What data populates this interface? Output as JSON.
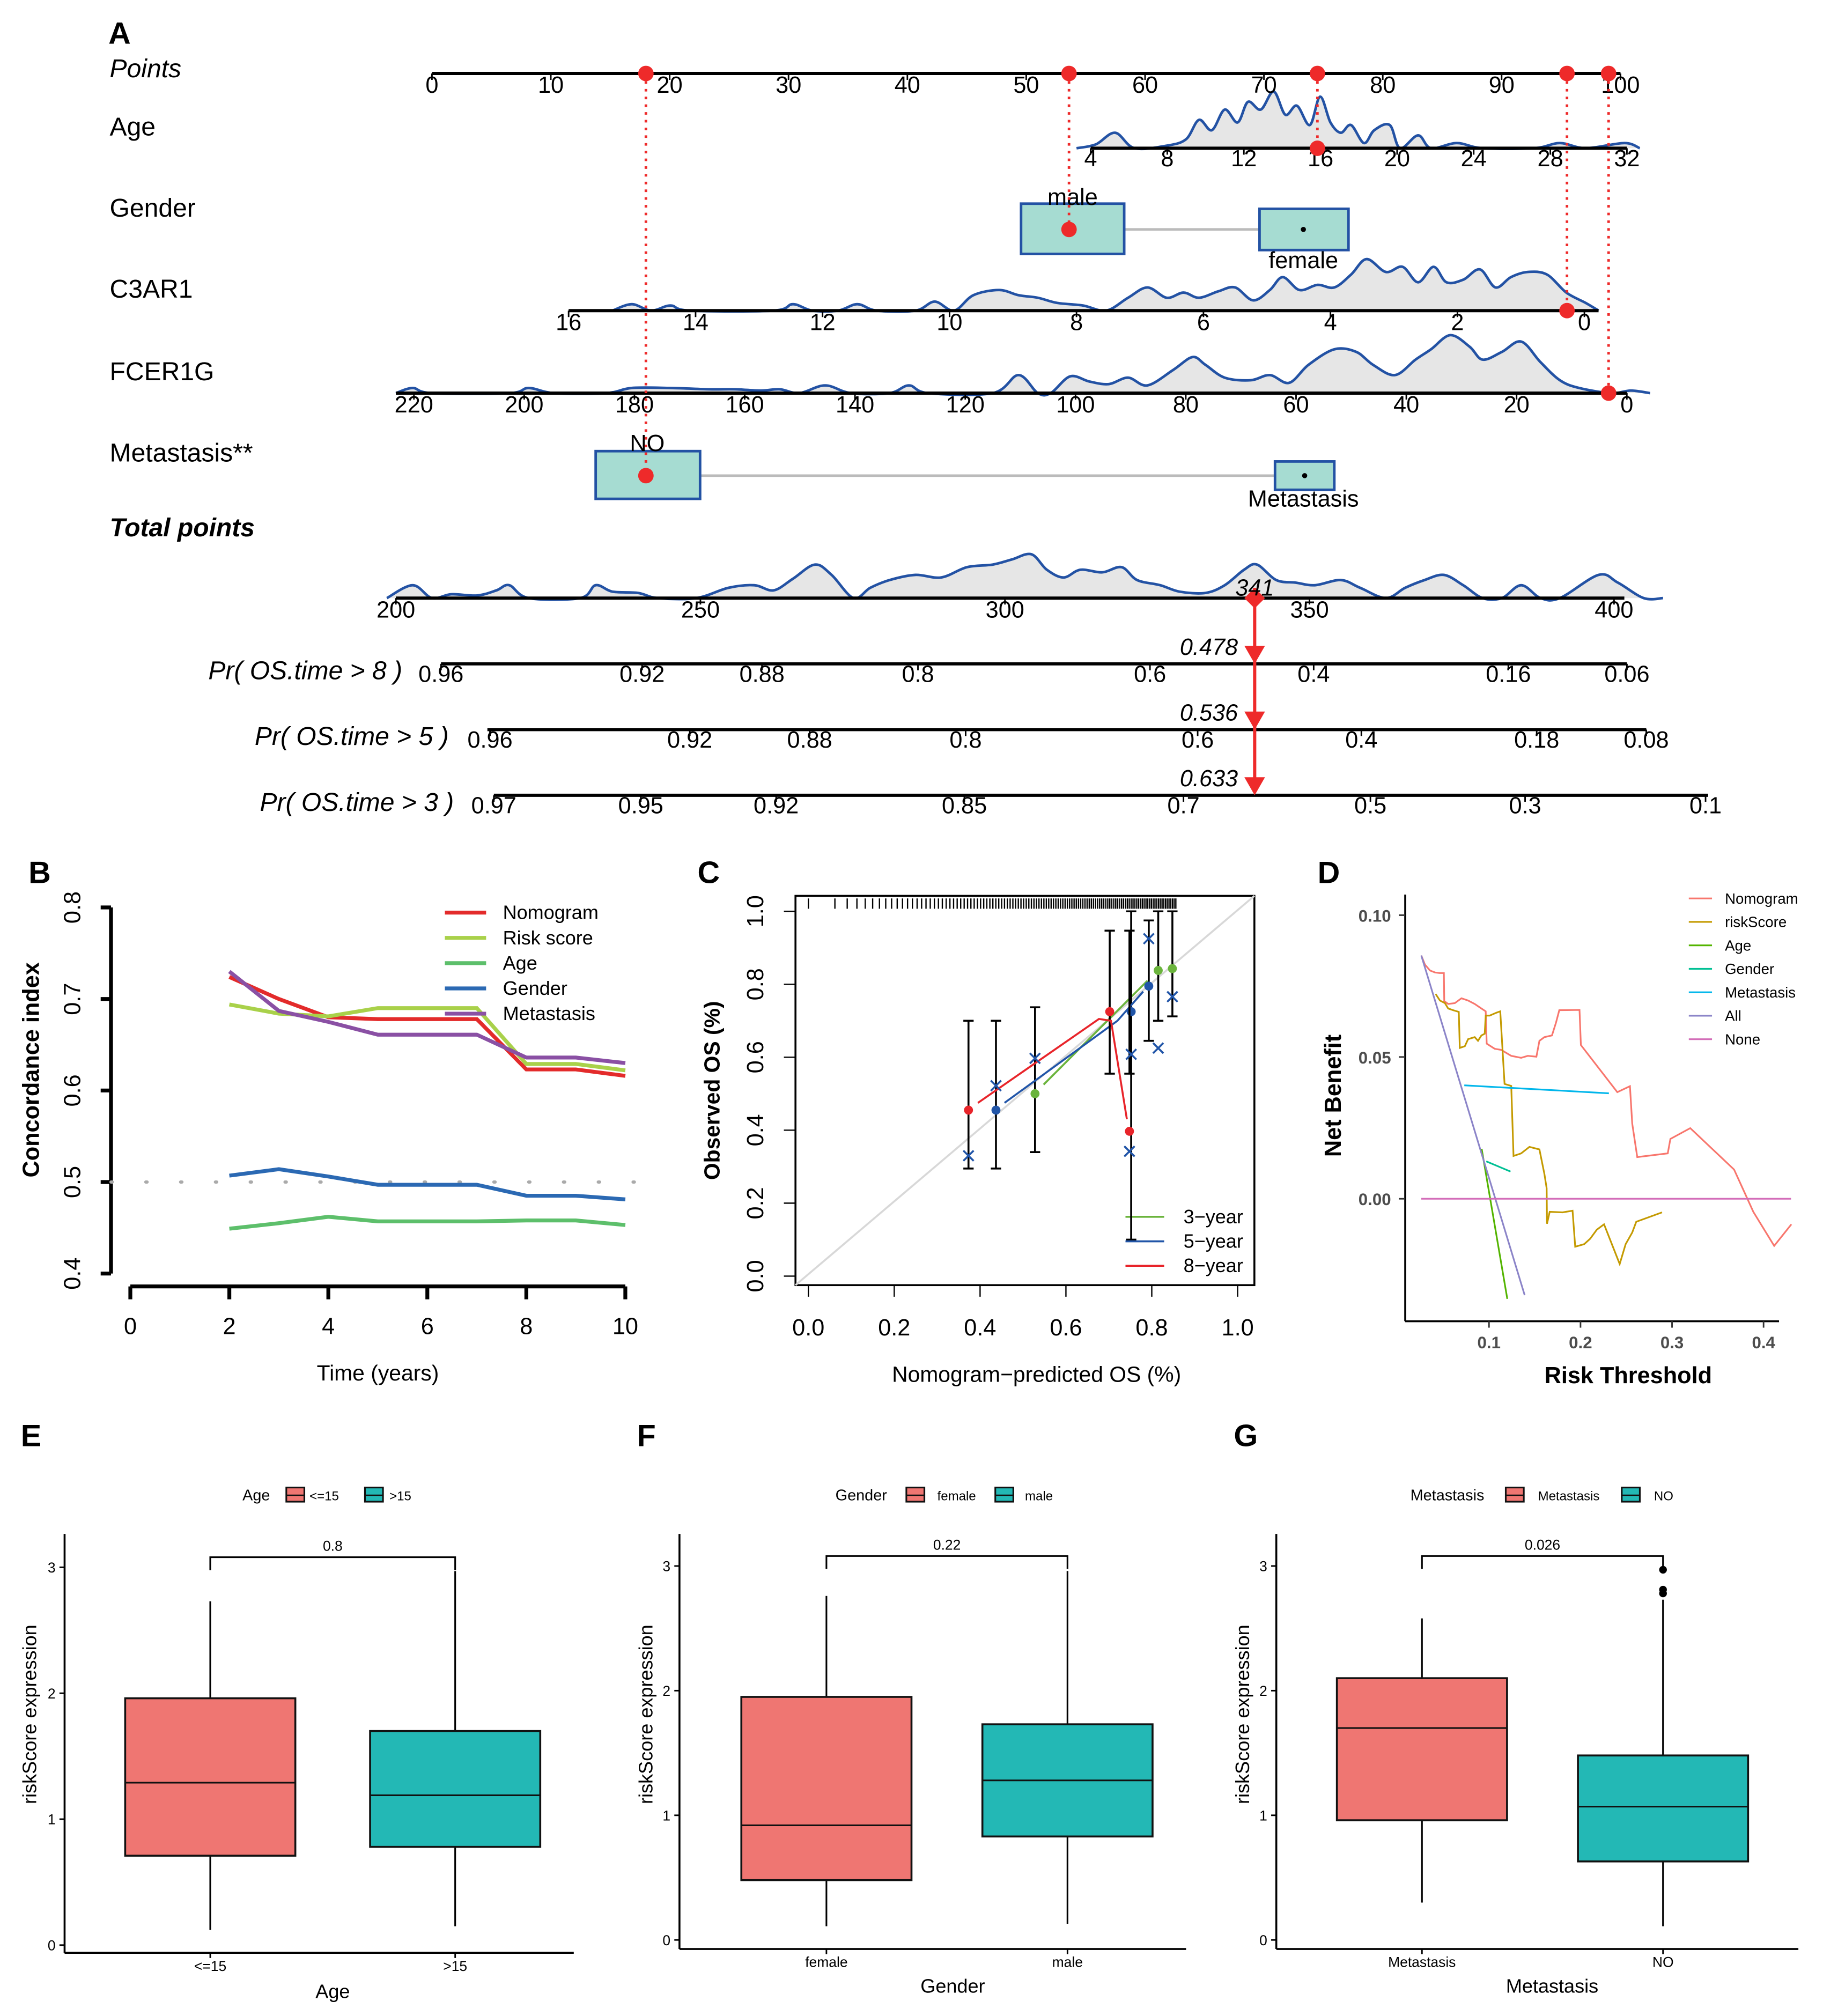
{
  "panels": {
    "a": "A",
    "b": "B",
    "c": "C",
    "d": "D",
    "e": "E",
    "f": "F",
    "g": "G"
  },
  "colors": {
    "nomogram_curve": "#2352a4",
    "nomogram_fill": "#e6e6e6",
    "nomogram_box": "#a6dcd2",
    "selection_red": "#ee2a2a"
  },
  "chart_data": [
    {
      "type": "nomogram",
      "rows": [
        {
          "label": "Points",
          "style": "italic",
          "ticks": [
            "0",
            "10",
            "20",
            "30",
            "40",
            "50",
            "60",
            "70",
            "80",
            "90",
            "100"
          ]
        },
        {
          "label": "Age",
          "ticks": [
            "4",
            "8",
            "12",
            "16",
            "20",
            "24",
            "28",
            "32"
          ]
        },
        {
          "label": "Gender",
          "levels": [
            "male",
            "female"
          ]
        },
        {
          "label": "C3AR1",
          "ticks": [
            "16",
            "14",
            "12",
            "10",
            "8",
            "6",
            "4",
            "2",
            "0"
          ]
        },
        {
          "label": "FCER1G",
          "ticks": [
            "220",
            "200",
            "180",
            "160",
            "140",
            "120",
            "100",
            "80",
            "60",
            "40",
            "20",
            "0"
          ]
        },
        {
          "label": "Metastasis**",
          "levels": [
            "NO",
            "Metastasis"
          ]
        },
        {
          "label": "Total points",
          "style": "bold-italic",
          "ticks": [
            "200",
            "250",
            "300",
            "350",
            "400"
          ]
        },
        {
          "label": "Pr( OS.time > 8 )",
          "style": "italic",
          "ticks": [
            "0.96",
            "0.92",
            "0.88",
            "0.8",
            "0.6",
            "0.4",
            "0.16",
            "0.06"
          ]
        },
        {
          "label": "Pr( OS.time > 5 )",
          "style": "italic",
          "ticks": [
            "0.96",
            "0.92",
            "0.88",
            "0.8",
            "0.6",
            "0.4",
            "0.18",
            "0.08"
          ]
        },
        {
          "label": "Pr( OS.time > 3 )",
          "style": "italic",
          "ticks": [
            "0.97",
            "0.95",
            "0.92",
            "0.85",
            "0.7",
            "0.5",
            "0.3",
            "0.1"
          ]
        }
      ],
      "selected_points": [
        18,
        53.6,
        74.5,
        95.5,
        99
      ],
      "selected_values": {
        "Metastasis": "NO",
        "Gender": "male",
        "Age": 16,
        "C3AR1": 0.2,
        "FCER1G": 2
      },
      "total_points": 341,
      "total_label": "341",
      "predictions": [
        "0.478",
        "0.536",
        "0.633"
      ]
    },
    {
      "type": "line",
      "xlabel": "Time (years)",
      "ylabel": "Concordance index",
      "xlim": [
        0,
        10
      ],
      "ylim": [
        0.4,
        0.8
      ],
      "xticks": [
        "0",
        "2",
        "4",
        "6",
        "8",
        "10"
      ],
      "yticks": [
        "0.4",
        "0.5",
        "0.6",
        "0.7",
        "0.8"
      ],
      "reference_line": 0.5,
      "legend_position": "top-right",
      "x": [
        2,
        3,
        4,
        5,
        6,
        7,
        8,
        9,
        10
      ],
      "series": [
        {
          "name": "Nomogram",
          "color": "#e32b2b",
          "values": [
            0.724,
            0.7,
            0.68,
            0.678,
            0.678,
            0.678,
            0.623,
            0.623,
            0.616
          ]
        },
        {
          "name": "Risk score",
          "color": "#a9d14a",
          "values": [
            0.694,
            0.684,
            0.681,
            0.69,
            0.69,
            0.69,
            0.629,
            0.629,
            0.622
          ]
        },
        {
          "name": "Age",
          "color": "#5dbf6b",
          "values": [
            0.449,
            0.455,
            0.462,
            0.457,
            0.457,
            0.457,
            0.458,
            0.458,
            0.453
          ]
        },
        {
          "name": "Gender",
          "color": "#2b69b3",
          "values": [
            0.507,
            0.514,
            0.506,
            0.497,
            0.497,
            0.497,
            0.485,
            0.485,
            0.481
          ]
        },
        {
          "name": "Metastasis",
          "color": "#8a50a4",
          "values": [
            0.73,
            0.687,
            0.675,
            0.661,
            0.661,
            0.661,
            0.636,
            0.636,
            0.63
          ]
        }
      ]
    },
    {
      "type": "scatter",
      "xlabel": "Nomogram−predicted OS (%)",
      "ylabel": "Observed OS (%)",
      "xlim": [
        0,
        1
      ],
      "ylim": [
        0,
        1
      ],
      "xticks": [
        "0.0",
        "0.2",
        "0.4",
        "0.6",
        "0.8",
        "1.0"
      ],
      "yticks": [
        "0.0",
        "0.2",
        "0.4",
        "0.6",
        "0.8",
        "1.0"
      ],
      "legend_position": "bottom-right",
      "series": [
        {
          "name": "3−year",
          "color": "#6bb43d",
          "points": [
            [
              0.528,
              0.5
            ],
            [
              0.815,
              0.838
            ],
            [
              0.848,
              0.843
            ]
          ],
          "errors": [
            [
              0.34,
              0.737
            ],
            [
              0.7,
              1.0
            ],
            [
              0.712,
              1.0
            ]
          ],
          "fit": [
            [
              0.548,
              0.525
            ],
            [
              0.79,
              0.81
            ]
          ]
        },
        {
          "name": "5−year",
          "color": "#2155a8",
          "points": [
            [
              0.437,
              0.455
            ],
            [
              0.752,
              0.725
            ],
            [
              0.793,
              0.795
            ]
          ],
          "errors": [
            [
              0.295,
              0.7
            ],
            [
              0.1,
              1.0
            ],
            [
              0.645,
              0.975
            ]
          ],
          "fit": [
            [
              0.457,
              0.475
            ],
            [
              0.72,
              0.7
            ],
            [
              0.78,
              0.78
            ]
          ]
        },
        {
          "name": "8−year",
          "color": "#e8242a",
          "points": [
            [
              0.373,
              0.455
            ],
            [
              0.702,
              0.725
            ],
            [
              0.748,
              0.397
            ]
          ],
          "errors": [
            [
              0.295,
              0.7
            ],
            [
              0.555,
              0.947
            ],
            [
              0.555,
              0.947
            ]
          ],
          "fit": [
            [
              0.395,
              0.475
            ],
            [
              0.677,
              0.705
            ],
            [
              0.705,
              0.7
            ],
            [
              0.742,
              0.43
            ]
          ]
        }
      ],
      "bias_corrected_x": [
        [
          0.373,
          0.33
        ],
        [
          0.437,
          0.522
        ],
        [
          0.528,
          0.597
        ],
        [
          0.748,
          0.342
        ],
        [
          0.752,
          0.608
        ],
        [
          0.793,
          0.925
        ],
        [
          0.815,
          0.625
        ],
        [
          0.848,
          0.766
        ]
      ]
    },
    {
      "type": "line",
      "xlabel": "Risk Threshold",
      "ylabel": "Net Benefit",
      "xticks": [
        "0.1",
        "0.2",
        "0.3",
        "0.4"
      ],
      "yticks": [
        "0.00",
        "0.05",
        "0.10"
      ],
      "legend_position": "top-right",
      "series": [
        {
          "name": "Nomogram",
          "color": "#f8766d",
          "points": [
            [
              0.026,
              0.0858
            ],
            [
              0.03,
              0.0826
            ],
            [
              0.0355,
              0.0805
            ],
            [
              0.041,
              0.0798
            ],
            [
              0.046,
              0.0796
            ],
            [
              0.0507,
              0.0796
            ],
            [
              0.0511,
              0.0697
            ],
            [
              0.0554,
              0.0687
            ],
            [
              0.0627,
              0.069
            ],
            [
              0.0699,
              0.0707
            ],
            [
              0.0772,
              0.0699
            ],
            [
              0.0844,
              0.0687
            ],
            [
              0.0917,
              0.0671
            ],
            [
              0.0964,
              0.0661
            ],
            [
              0.0975,
              0.0547
            ],
            [
              0.1062,
              0.0529
            ],
            [
              0.1134,
              0.0525
            ],
            [
              0.1243,
              0.0504
            ],
            [
              0.1351,
              0.0497
            ],
            [
              0.1424,
              0.0504
            ],
            [
              0.1518,
              0.0501
            ],
            [
              0.1551,
              0.0557
            ],
            [
              0.1605,
              0.057
            ],
            [
              0.1688,
              0.0576
            ],
            [
              0.1732,
              0.0621
            ],
            [
              0.1768,
              0.0665
            ],
            [
              0.1989,
              0.0666
            ],
            [
              0.2004,
              0.0542
            ],
            [
              0.2402,
              0.0376
            ],
            [
              0.254,
              0.0397
            ],
            [
              0.2565,
              0.0265
            ],
            [
              0.262,
              0.0147
            ],
            [
              0.2953,
              0.016
            ],
            [
              0.2982,
              0.0211
            ],
            [
              0.3199,
              0.0249
            ],
            [
              0.3678,
              0.0103
            ],
            [
              0.3822,
              0.0001
            ],
            [
              0.3888,
              -0.0046
            ],
            [
              0.4116,
              -0.0166
            ],
            [
              0.4304,
              -0.009
            ]
          ]
        },
        {
          "name": "riskScore",
          "color": "#c49a00",
          "points": [
            [
              0.0417,
              0.0722
            ],
            [
              0.0464,
              0.0699
            ],
            [
              0.0518,
              0.069
            ],
            [
              0.0554,
              0.0671
            ],
            [
              0.0609,
              0.0665
            ],
            [
              0.067,
              0.0659
            ],
            [
              0.0681,
              0.0532
            ],
            [
              0.0736,
              0.0538
            ],
            [
              0.0772,
              0.0563
            ],
            [
              0.0844,
              0.057
            ],
            [
              0.088,
              0.0557
            ],
            [
              0.0917,
              0.0576
            ],
            [
              0.0953,
              0.0582
            ],
            [
              0.0964,
              0.0646
            ],
            [
              0.1007,
              0.0646
            ],
            [
              0.108,
              0.0656
            ],
            [
              0.1123,
              0.0661
            ],
            [
              0.117,
              0.0405
            ],
            [
              0.1243,
              0.0398
            ],
            [
              0.1268,
              0.0151
            ],
            [
              0.1351,
              0.016
            ],
            [
              0.1442,
              0.0183
            ],
            [
              0.1551,
              0.0174
            ],
            [
              0.1605,
              0.0088
            ],
            [
              0.163,
              0.0037
            ],
            [
              0.1634,
              -0.0088
            ],
            [
              0.1663,
              -0.0046
            ],
            [
              0.1804,
              -0.0048
            ],
            [
              0.1913,
              -0.0042
            ],
            [
              0.1942,
              -0.0169
            ],
            [
              0.204,
              -0.016
            ],
            [
              0.2105,
              -0.0141
            ],
            [
              0.2178,
              -0.0109
            ],
            [
              0.2257,
              -0.009
            ],
            [
              0.2428,
              -0.023
            ],
            [
              0.2493,
              -0.016
            ],
            [
              0.2565,
              -0.0119
            ],
            [
              0.2609,
              -0.0081
            ],
            [
              0.2891,
              -0.0048
            ]
          ]
        },
        {
          "name": "Age",
          "color": "#53b400",
          "points": [
            [
              0.092,
              0.0176
            ],
            [
              0.12,
              -0.0353
            ]
          ]
        },
        {
          "name": "Gender",
          "color": "#00c094",
          "points": [
            [
              0.097,
              0.0132
            ],
            [
              0.1235,
              0.0096
            ]
          ]
        },
        {
          "name": "Metastasis",
          "color": "#00b6eb",
          "points": [
            [
              0.073,
              0.04
            ],
            [
              0.231,
              0.0372
            ]
          ]
        },
        {
          "name": "All",
          "color": "#8b84c8",
          "points": [
            [
              0.026,
              0.0858
            ],
            [
              0.139,
              -0.034
            ]
          ]
        },
        {
          "name": "None",
          "color": "#d36db8",
          "points": [
            [
              0.026,
              0
            ],
            [
              0.43,
              0
            ]
          ]
        }
      ]
    },
    {
      "type": "box",
      "legend_title": "Age",
      "xlabel": "Age",
      "ylabel": "riskScore  expression",
      "yticks": [
        "0",
        "1",
        "2",
        "3"
      ],
      "categories": [
        "<=15",
        ">15"
      ],
      "colors": [
        "#ef7672",
        "#23b8b5"
      ],
      "boxes": [
        {
          "min": 0.12,
          "q1": 0.71,
          "median": 1.29,
          "q3": 1.96,
          "max": 2.73,
          "outliers": []
        },
        {
          "min": 0.15,
          "q1": 0.78,
          "median": 1.19,
          "q3": 1.7,
          "max": 2.97,
          "outliers": []
        }
      ],
      "p_value": "0.8"
    },
    {
      "type": "box",
      "legend_title": "Gender",
      "xlabel": "Gender",
      "ylabel": "riskScore  expression",
      "yticks": [
        "0",
        "1",
        "2",
        "3"
      ],
      "categories": [
        "female",
        "male"
      ],
      "colors": [
        "#ef7672",
        "#23b8b5"
      ],
      "boxes": [
        {
          "min": 0.11,
          "q1": 0.48,
          "median": 0.92,
          "q3": 1.95,
          "max": 2.76,
          "outliers": []
        },
        {
          "min": 0.13,
          "q1": 0.83,
          "median": 1.28,
          "q3": 1.73,
          "max": 2.96,
          "outliers": []
        }
      ],
      "p_value": "0.22"
    },
    {
      "type": "box",
      "legend_title": "Metastasis",
      "xlabel": "Metastasis",
      "ylabel": "riskScore  expression",
      "yticks": [
        "0",
        "1",
        "2",
        "3"
      ],
      "categories": [
        "Metastasis",
        "NO"
      ],
      "colors": [
        "#ef7672",
        "#23b8b5"
      ],
      "boxes": [
        {
          "min": 0.3,
          "q1": 0.96,
          "median": 1.7,
          "q3": 2.1,
          "max": 2.58,
          "outliers": []
        },
        {
          "min": 0.11,
          "q1": 0.63,
          "median": 1.07,
          "q3": 1.48,
          "max": 2.73,
          "outliers": [
            2.78,
            2.81,
            2.97
          ]
        }
      ],
      "p_value": "0.026"
    }
  ]
}
